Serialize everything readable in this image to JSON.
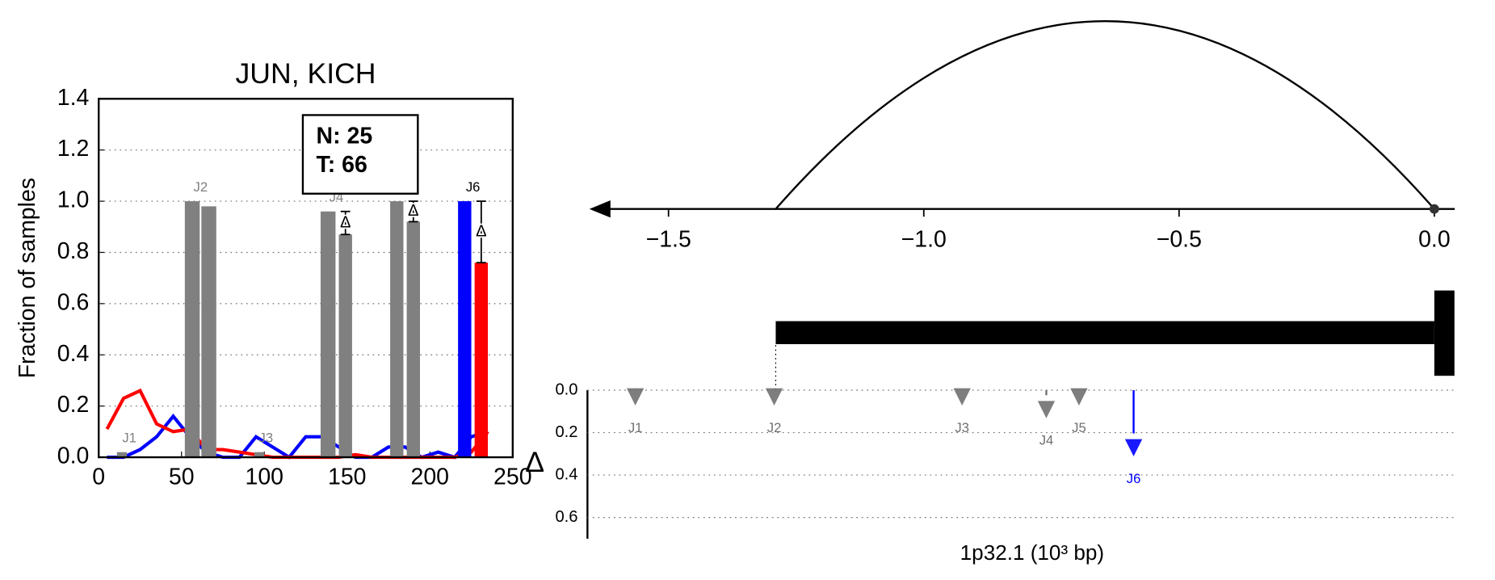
{
  "chart_data": [
    {
      "type": "bar",
      "title": "JUN, KICH",
      "ylabel": "Fraction of samples",
      "xlim": [
        0,
        250
      ],
      "xticks": [
        0,
        50,
        100,
        150,
        200,
        250
      ],
      "ylim": [
        0,
        1.4
      ],
      "yticks": [
        {
          "value": 0,
          "label": "0.0"
        },
        0.2,
        0.4,
        0.6,
        0.8,
        {
          "value": 1,
          "label": "1.0"
        },
        1.2,
        1.4
      ],
      "grid": true,
      "annotation": [
        "N: 25",
        "T: 66"
      ],
      "junctions": [
        {
          "label": "J1",
          "normal_x": [
            11,
            17
          ],
          "normal": 0.02,
          "tumor_x": [
            19,
            26
          ],
          "tumor": 0,
          "normal_color": "#808080",
          "tumor_color": "#808080",
          "label_color": "#808080"
        },
        {
          "label": "J2",
          "normal_x": [
            52,
            61
          ],
          "normal": 1.0,
          "tumor_x": [
            62,
            71
          ],
          "tumor": 0.98,
          "normal_color": "#808080",
          "tumor_color": "#808080",
          "label_color": "#808080"
        },
        {
          "label": "J3",
          "normal_x": [
            94,
            100
          ],
          "normal": 0.02,
          "tumor_x": [
            101,
            108
          ],
          "tumor": 0,
          "normal_color": "#808080",
          "tumor_color": "#808080",
          "label_color": "#808080"
        },
        {
          "label": "J4",
          "normal_x": [
            134,
            143
          ],
          "normal": 0.96,
          "tumor_x": [
            145,
            153
          ],
          "tumor": 0.87,
          "normal_color": "#808080",
          "tumor_color": "#808080",
          "label_color": "#808080",
          "delta_label": "Δ"
        },
        {
          "normal_x": [
            176,
            184
          ],
          "normal": 1.0,
          "tumor_x": [
            186,
            194
          ],
          "tumor": 0.92,
          "normal_color": "#808080",
          "tumor_color": "#808080",
          "delta_label": "Δ"
        },
        {
          "label": "J6",
          "normal_x": [
            217,
            225
          ],
          "normal": 1.0,
          "tumor_x": [
            227,
            235
          ],
          "tumor": 0.76,
          "normal_color": "#0000ff",
          "tumor_color": "#ff0000",
          "label_color": "#000000",
          "delta_label": "Δ"
        }
      ],
      "line_x": [
        5,
        15,
        25,
        35,
        45,
        55,
        65,
        75,
        85,
        95,
        105,
        115,
        125,
        135,
        145,
        155,
        165,
        175,
        185,
        195,
        205,
        215,
        225,
        235
      ],
      "series": [
        {
          "color": "#0000ff",
          "values": [
            0,
            0,
            0.03,
            0.08,
            0.16,
            0.08,
            0.02,
            0,
            0,
            0.08,
            0.04,
            0,
            0.08,
            0.08,
            0.04,
            0,
            0,
            0.04,
            0.04,
            0,
            0.02,
            0,
            0.08,
            0.1
          ]
        },
        {
          "color": "#ff0000",
          "values": [
            0.11,
            0.23,
            0.26,
            0.13,
            0.1,
            0.11,
            0.03,
            0.03,
            0.02,
            0.01,
            0,
            0,
            0,
            0,
            0,
            0.01,
            0,
            0,
            0,
            0,
            0,
            0,
            0.02,
            0.1
          ]
        }
      ]
    },
    {
      "type": "junction-map",
      "xlabel": "1p32.1 (10³ bp)",
      "ylabel": "Δ",
      "xlim": [
        -1.655,
        0.04
      ],
      "xticks": [
        {
          "value": -1.5,
          "label": "−1.5"
        },
        {
          "value": -1,
          "label": "−1.0"
        },
        {
          "value": -0.5,
          "label": "−0.5"
        },
        {
          "value": 0,
          "label": "0.0"
        }
      ],
      "span": [
        -1.29,
        0
      ],
      "ylim": [
        0,
        0.7
      ],
      "yticks": [
        {
          "value": 0,
          "label": "0.0"
        },
        0.2,
        0.4,
        0.6
      ],
      "grid": true,
      "junctions": [
        {
          "label": "J1",
          "x": -1.565,
          "delta": 0,
          "color": "#707070"
        },
        {
          "label": "J2",
          "x": -1.293,
          "delta": 0,
          "color": "#707070"
        },
        {
          "label": "J3",
          "x": -0.925,
          "delta": 0,
          "color": "#707070"
        },
        {
          "label": "J4",
          "x": -0.76,
          "delta": 0.06,
          "color": "#707070"
        },
        {
          "label": "J5",
          "x": -0.696,
          "delta": 0,
          "color": "#707070"
        },
        {
          "label": "J6",
          "x": -0.589,
          "delta": 0.24,
          "color": "#0000ff"
        }
      ]
    }
  ]
}
